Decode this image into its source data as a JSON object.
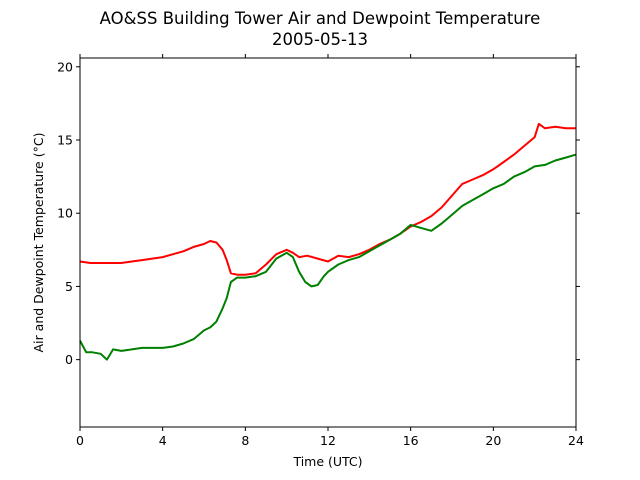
{
  "chart_data": {
    "type": "line",
    "title": "AO&SS Building Tower Air and Dewpoint Temperature",
    "subtitle": "2005-05-13",
    "xlabel": "Time (UTC)",
    "ylabel": "Air and Dewpoint Temperature (°C)",
    "xlim": [
      0,
      24
    ],
    "ylim": [
      -4.6,
      20.6
    ],
    "xticks": [
      0,
      4,
      8,
      12,
      16,
      20,
      24
    ],
    "yticks": [
      0,
      5,
      10,
      15,
      20
    ],
    "grid": false,
    "series": [
      {
        "color": "#ff0000",
        "x": [
          0,
          0.5,
          1,
          1.5,
          2,
          2.5,
          3,
          3.5,
          4,
          4.5,
          5,
          5.5,
          6,
          6.3,
          6.6,
          6.9,
          7.1,
          7.3,
          7.6,
          8,
          8.5,
          9,
          9.5,
          10,
          10.3,
          10.6,
          11,
          11.5,
          12,
          12.5,
          13,
          13.5,
          14,
          14.5,
          15,
          15.5,
          16,
          16.5,
          17,
          17.5,
          18,
          18.5,
          19,
          19.5,
          20,
          20.5,
          21,
          21.5,
          22,
          22.2,
          22.5,
          23,
          23.5,
          24
        ],
        "y": [
          6.7,
          6.6,
          6.6,
          6.6,
          6.6,
          6.7,
          6.8,
          6.9,
          7.0,
          7.2,
          7.4,
          7.7,
          7.9,
          8.1,
          8.0,
          7.5,
          6.8,
          5.9,
          5.8,
          5.8,
          5.9,
          6.5,
          7.2,
          7.5,
          7.3,
          7.0,
          7.1,
          6.9,
          6.7,
          7.1,
          7.0,
          7.2,
          7.5,
          7.9,
          8.2,
          8.6,
          9.1,
          9.4,
          9.8,
          10.4,
          11.2,
          12.0,
          12.3,
          12.6,
          13.0,
          13.5,
          14.0,
          14.6,
          15.2,
          16.1,
          15.8,
          15.9,
          15.8,
          15.8
        ]
      },
      {
        "color": "#008000",
        "x": [
          0,
          0.3,
          0.6,
          1,
          1.3,
          1.6,
          2,
          2.5,
          3,
          3.5,
          4,
          4.5,
          5,
          5.5,
          6,
          6.3,
          6.6,
          6.9,
          7.1,
          7.3,
          7.6,
          8,
          8.5,
          9,
          9.5,
          10,
          10.3,
          10.6,
          10.9,
          11.2,
          11.5,
          11.8,
          12,
          12.5,
          13,
          13.5,
          14,
          14.5,
          15,
          15.5,
          16,
          16.5,
          17,
          17.5,
          18,
          18.5,
          19,
          19.5,
          20,
          20.5,
          21,
          21.5,
          22,
          22.5,
          23,
          23.5,
          24
        ],
        "y": [
          1.3,
          0.5,
          0.5,
          0.4,
          0.0,
          0.7,
          0.6,
          0.7,
          0.8,
          0.8,
          0.8,
          0.9,
          1.1,
          1.4,
          2.0,
          2.2,
          2.6,
          3.5,
          4.2,
          5.3,
          5.6,
          5.6,
          5.7,
          6.0,
          6.9,
          7.3,
          7.0,
          6.0,
          5.3,
          5.0,
          5.1,
          5.7,
          6.0,
          6.5,
          6.8,
          7.0,
          7.4,
          7.8,
          8.2,
          8.6,
          9.2,
          9.0,
          8.8,
          9.3,
          9.9,
          10.5,
          10.9,
          11.3,
          11.7,
          12.0,
          12.5,
          12.8,
          13.2,
          13.3,
          13.6,
          13.8,
          14.0
        ]
      }
    ]
  }
}
